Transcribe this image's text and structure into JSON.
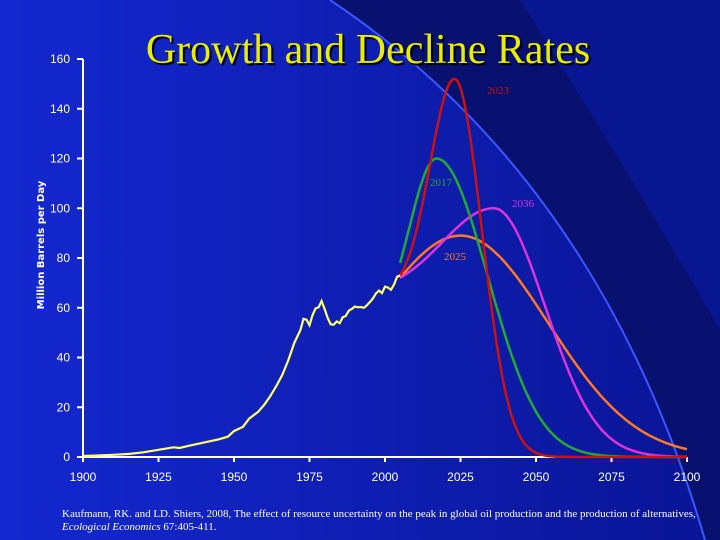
{
  "chart_data": {
    "type": "line",
    "title": "Growth and Decline Rates",
    "ylabel": "Million Barrels per Day",
    "xlabel": "",
    "xlim": [
      1900,
      2100
    ],
    "ylim": [
      0,
      160
    ],
    "x_ticks": [
      1900,
      1925,
      1950,
      1975,
      2000,
      2025,
      2050,
      2075,
      2100
    ],
    "y_ticks": [
      0,
      20,
      40,
      60,
      80,
      100,
      120,
      140,
      160
    ],
    "grid": false,
    "historical": {
      "color": "#ffff66",
      "points": [
        [
          1900,
          0.4
        ],
        [
          1905,
          0.6
        ],
        [
          1910,
          0.9
        ],
        [
          1915,
          1.2
        ],
        [
          1920,
          1.9
        ],
        [
          1925,
          2.9
        ],
        [
          1930,
          3.9
        ],
        [
          1932,
          3.6
        ],
        [
          1935,
          4.5
        ],
        [
          1940,
          5.8
        ],
        [
          1945,
          7.1
        ],
        [
          1948,
          8.2
        ],
        [
          1950,
          10.4
        ],
        [
          1953,
          12.2
        ],
        [
          1955,
          15.4
        ],
        [
          1958,
          18.2
        ],
        [
          1960,
          21.0
        ],
        [
          1962,
          24.4
        ],
        [
          1964,
          28.5
        ],
        [
          1966,
          33.0
        ],
        [
          1968,
          39.0
        ],
        [
          1970,
          46.0
        ],
        [
          1972,
          51.0
        ],
        [
          1973,
          55.5
        ],
        [
          1974,
          55.2
        ],
        [
          1975,
          53.0
        ],
        [
          1976,
          57.0
        ],
        [
          1977,
          59.7
        ],
        [
          1978,
          60.2
        ],
        [
          1979,
          62.7
        ],
        [
          1980,
          59.5
        ],
        [
          1981,
          56.0
        ],
        [
          1982,
          53.4
        ],
        [
          1983,
          53.2
        ],
        [
          1984,
          54.5
        ],
        [
          1985,
          53.8
        ],
        [
          1986,
          56.2
        ],
        [
          1987,
          56.7
        ],
        [
          1988,
          58.8
        ],
        [
          1989,
          59.5
        ],
        [
          1990,
          60.5
        ],
        [
          1991,
          60.2
        ],
        [
          1992,
          60.3
        ],
        [
          1993,
          60.0
        ],
        [
          1994,
          61.0
        ],
        [
          1995,
          62.3
        ],
        [
          1996,
          63.7
        ],
        [
          1997,
          65.7
        ],
        [
          1998,
          66.9
        ],
        [
          1999,
          65.9
        ],
        [
          2000,
          68.5
        ],
        [
          2001,
          68.1
        ],
        [
          2002,
          67.2
        ],
        [
          2003,
          69.4
        ],
        [
          2004,
          72.5
        ],
        [
          2005,
          73.0
        ]
      ]
    },
    "series": [
      {
        "label": "2023",
        "color": "#cc1111",
        "peak_x": 2023,
        "peak_y": 152,
        "start_x": 2005,
        "start_y": 73,
        "sigma_left": 8.0,
        "sigma_right": 9.0
      },
      {
        "label": "2017",
        "color": "#22aa33",
        "peak_x": 2017,
        "peak_y": 120,
        "start_x": 2005,
        "start_y": 78,
        "sigma_left": 9.0,
        "sigma_right": 17.0
      },
      {
        "label": "2036",
        "color": "#dd33dd",
        "peak_x": 2036,
        "peak_y": 100,
        "start_x": 2005,
        "start_y": 72,
        "sigma_left": 17.0,
        "sigma_right": 17.0
      },
      {
        "label": "2025",
        "color": "#ff7722",
        "peak_x": 2025,
        "peak_y": 89,
        "start_x": 2005,
        "start_y": 72,
        "sigma_left": 25.0,
        "sigma_right": 29.0
      }
    ]
  },
  "citation": {
    "text": "Kaufmann, RK. and LD. Shiers, 2008, The effect of resource uncertainty on the peak in global oil production and the production of alternatives,",
    "journal": "Ecological Economics",
    "volume": "67:405-411."
  }
}
